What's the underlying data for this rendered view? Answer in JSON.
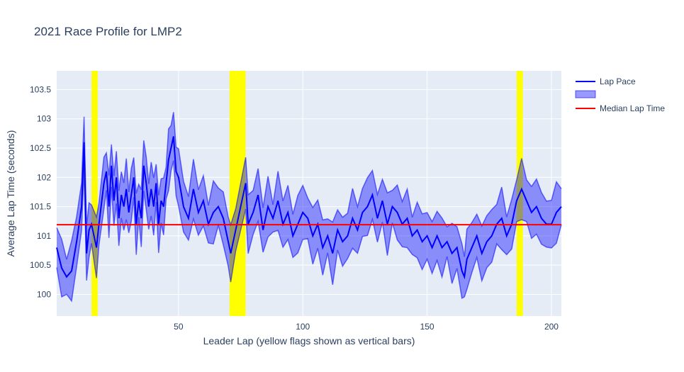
{
  "chart_data": {
    "type": "line",
    "title": "2021 Race Profile for LMP2",
    "xlabel": "Leader Lap  (yellow flags shown as vertical bars)",
    "ylabel": "Average Lap Time (seconds)",
    "xlim": [
      1,
      204
    ],
    "ylim": [
      99.63,
      103.82
    ],
    "x_ticks": [
      50,
      100,
      150,
      200
    ],
    "y_ticks": [
      100,
      100.5,
      101,
      101.5,
      102,
      102.5,
      103,
      103.5
    ],
    "y_tick_labels": [
      "100",
      "100.5",
      "101",
      "101.5",
      "102",
      "102.5",
      "103",
      "103.5"
    ],
    "grid": true,
    "legend": "right",
    "legend_entries": [
      "Lap Pace",
      "",
      "Median Lap Time"
    ],
    "median_lap_time": 101.19,
    "yellow_flags": [
      [
        15,
        17.5
      ],
      [
        70.5,
        77
      ],
      [
        186,
        188.5
      ]
    ],
    "colors": {
      "lap_pace": "#0000ff",
      "band_fill": "rgba(0,0,255,0.4)",
      "median": "#ff0000",
      "yellow": "#ffff00",
      "plot_bg": "#e5ecf6",
      "gap_fill": "#8c8c5a"
    },
    "series": [
      {
        "name": "Lap Pace",
        "x": [
          1,
          3,
          5,
          7,
          9,
          11,
          12,
          13,
          14,
          15,
          17,
          18,
          20,
          21,
          22,
          23,
          24,
          25,
          26,
          27,
          28,
          29,
          30,
          31,
          32,
          33,
          34,
          35,
          36,
          37,
          38,
          39,
          40,
          41,
          42,
          43,
          44,
          45,
          46,
          47,
          48,
          49,
          50,
          52,
          54,
          56,
          58,
          60,
          62,
          64,
          66,
          68,
          70,
          71,
          73,
          77,
          78,
          80,
          82,
          84,
          86,
          88,
          90,
          92,
          94,
          96,
          98,
          100,
          102,
          104,
          106,
          108,
          110,
          112,
          114,
          116,
          118,
          120,
          122,
          124,
          126,
          128,
          130,
          132,
          134,
          136,
          138,
          140,
          142,
          144,
          146,
          148,
          150,
          152,
          154,
          156,
          158,
          160,
          162,
          164,
          165,
          166,
          168,
          170,
          172,
          174,
          176,
          178,
          180,
          182,
          184,
          186,
          188,
          190,
          192,
          194,
          196,
          198,
          200,
          202,
          204
        ],
        "mid": [
          100.8,
          100.45,
          100.3,
          100.4,
          100.9,
          101.5,
          102.6,
          100.7,
          101.1,
          101.2,
          100.8,
          101.2,
          101.9,
          102.1,
          101.5,
          102.2,
          101.6,
          102.0,
          101.3,
          101.7,
          101.5,
          101.8,
          101.4,
          101.7,
          102.0,
          101.2,
          101.6,
          101.3,
          102.2,
          101.9,
          101.5,
          101.8,
          101.5,
          101.9,
          101.2,
          101.6,
          101.5,
          101.9,
          102.3,
          102.5,
          102.7,
          102.1,
          102.0,
          101.5,
          101.3,
          101.8,
          101.4,
          101.6,
          101.2,
          101.4,
          101.5,
          101.3,
          100.9,
          100.7,
          101.1,
          101.9,
          101.2,
          101.4,
          101.7,
          101.1,
          101.5,
          101.3,
          101.6,
          101.2,
          101.4,
          101.0,
          101.2,
          101.4,
          101.3,
          101.0,
          101.2,
          100.8,
          101.0,
          100.7,
          101.1,
          100.9,
          101.0,
          101.3,
          101.1,
          101.4,
          101.5,
          101.7,
          101.3,
          101.6,
          101.2,
          101.5,
          101.4,
          101.2,
          101.3,
          101.0,
          101.1,
          100.9,
          101.0,
          100.8,
          101.0,
          100.8,
          100.9,
          100.7,
          100.8,
          100.4,
          100.3,
          100.6,
          100.8,
          101.0,
          100.7,
          100.9,
          101.0,
          101.2,
          101.3,
          101.0,
          101.2,
          101.6,
          101.8,
          101.6,
          101.4,
          101.5,
          101.3,
          101.2,
          101.2,
          101.4,
          101.5
        ]
      }
    ]
  }
}
